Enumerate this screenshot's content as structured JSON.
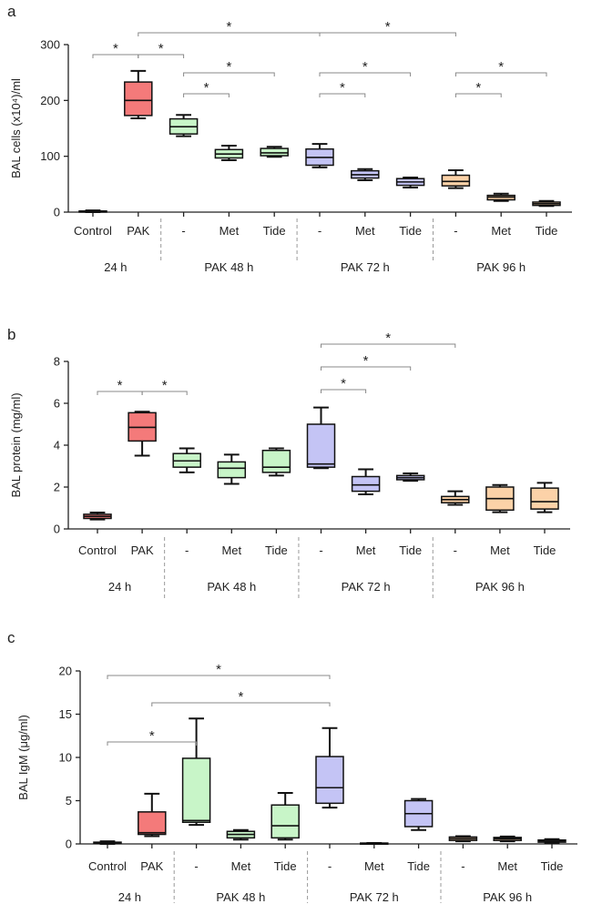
{
  "colors": {
    "control": "#7f7f7f",
    "pak24": "#f47a7a",
    "pak48": "#c8f5c8",
    "pak72": "#c4c4f5",
    "pak96": "#fcd2a8"
  },
  "chart_data": [
    {
      "panel": "a",
      "type": "box",
      "ylabel": "BAL cells (x10⁴)/ml",
      "ylim": [
        0,
        300
      ],
      "yticks": [
        0,
        100,
        200,
        300
      ],
      "categories": [
        "Control",
        "PAK",
        "-",
        "Met",
        "Tide",
        "-",
        "Met",
        "Tide",
        "-",
        "Met",
        "Tide"
      ],
      "groups": [
        {
          "label": "24 h",
          "from": 0,
          "to": 1
        },
        {
          "label": "PAK 48 h",
          "from": 2,
          "to": 4
        },
        {
          "label": "PAK 72 h",
          "from": 5,
          "to": 7
        },
        {
          "label": "PAK 96 h",
          "from": 8,
          "to": 10
        }
      ],
      "series": [
        {
          "name": "Control",
          "color": "control",
          "min": 0,
          "q1": 0,
          "median": 1,
          "q3": 2,
          "max": 3
        },
        {
          "name": "PAK",
          "color": "pak24",
          "min": 168,
          "q1": 173,
          "median": 200,
          "q3": 233,
          "max": 253
        },
        {
          "name": "PAK 48 h -",
          "color": "pak48",
          "min": 136,
          "q1": 140,
          "median": 153,
          "q3": 167,
          "max": 174
        },
        {
          "name": "PAK 48 h Met",
          "color": "pak48",
          "min": 93,
          "q1": 97,
          "median": 104,
          "q3": 112,
          "max": 119
        },
        {
          "name": "PAK 48 h Tide",
          "color": "pak48",
          "min": 99,
          "q1": 101,
          "median": 106,
          "q3": 114,
          "max": 117
        },
        {
          "name": "PAK 72 h -",
          "color": "pak72",
          "min": 80,
          "q1": 84,
          "median": 98,
          "q3": 113,
          "max": 122
        },
        {
          "name": "PAK 72 h Met",
          "color": "pak72",
          "min": 57,
          "q1": 61,
          "median": 67,
          "q3": 74,
          "max": 77
        },
        {
          "name": "PAK 72 h Tide",
          "color": "pak72",
          "min": 44,
          "q1": 48,
          "median": 54,
          "q3": 60,
          "max": 62
        },
        {
          "name": "PAK 96 h -",
          "color": "pak96",
          "min": 43,
          "q1": 47,
          "median": 55,
          "q3": 66,
          "max": 75
        },
        {
          "name": "PAK 96 h Met",
          "color": "pak96",
          "min": 20,
          "q1": 22,
          "median": 27,
          "q3": 30,
          "max": 33
        },
        {
          "name": "PAK 96 h Tide",
          "color": "pak96",
          "min": 11,
          "q1": 12,
          "median": 15,
          "q3": 18,
          "max": 20
        }
      ],
      "comparisons": [
        {
          "from": 0,
          "to": 1,
          "tier": 0,
          "label": "*"
        },
        {
          "from": 1,
          "to": 2,
          "tier": 0,
          "label": "*"
        },
        {
          "from": 1,
          "to": 5,
          "tier": 1,
          "label": "*"
        },
        {
          "from": 5,
          "to": 8,
          "tier": 1,
          "label": "*"
        },
        {
          "from": 2,
          "to": 4,
          "tier": 2,
          "label": "*"
        },
        {
          "from": 5,
          "to": 7,
          "tier": 2,
          "label": "*"
        },
        {
          "from": 8,
          "to": 10,
          "tier": 2,
          "label": "*"
        },
        {
          "from": 2,
          "to": 3,
          "tier": 3,
          "label": "*"
        },
        {
          "from": 5,
          "to": 6,
          "tier": 3,
          "label": "*"
        },
        {
          "from": 8,
          "to": 9,
          "tier": 3,
          "label": "*"
        }
      ]
    },
    {
      "panel": "b",
      "type": "box",
      "ylabel": "BAL protein (mg/ml)",
      "ylim": [
        0,
        8
      ],
      "yticks": [
        0,
        2,
        4,
        6,
        8
      ],
      "categories": [
        "Control",
        "PAK",
        "-",
        "Met",
        "Tide",
        "-",
        "Met",
        "Tide",
        "-",
        "Met",
        "Tide"
      ],
      "groups": [
        {
          "label": "24 h",
          "from": 0,
          "to": 1
        },
        {
          "label": "PAK 48 h",
          "from": 2,
          "to": 4
        },
        {
          "label": "PAK 72 h",
          "from": 5,
          "to": 7
        },
        {
          "label": "PAK 96 h",
          "from": 8,
          "to": 10
        }
      ],
      "series": [
        {
          "name": "Control",
          "color": "pak24",
          "min": 0.45,
          "q1": 0.5,
          "median": 0.6,
          "q3": 0.7,
          "max": 0.78
        },
        {
          "name": "PAK",
          "color": "pak24",
          "min": 3.5,
          "q1": 4.2,
          "median": 4.85,
          "q3": 5.55,
          "max": 5.6
        },
        {
          "name": "PAK 48 h -",
          "color": "pak48",
          "min": 2.7,
          "q1": 2.95,
          "median": 3.25,
          "q3": 3.6,
          "max": 3.85
        },
        {
          "name": "PAK 48 h Met",
          "color": "pak48",
          "min": 2.15,
          "q1": 2.45,
          "median": 2.9,
          "q3": 3.2,
          "max": 3.55
        },
        {
          "name": "PAK 48 h Tide",
          "color": "pak48",
          "min": 2.55,
          "q1": 2.7,
          "median": 2.95,
          "q3": 3.75,
          "max": 3.85
        },
        {
          "name": "PAK 72 h -",
          "color": "pak72",
          "min": 2.9,
          "q1": 2.95,
          "median": 3.1,
          "q3": 5.0,
          "max": 5.8
        },
        {
          "name": "PAK 72 h Met",
          "color": "pak72",
          "min": 1.65,
          "q1": 1.8,
          "median": 2.1,
          "q3": 2.5,
          "max": 2.85
        },
        {
          "name": "PAK 72 h Tide",
          "color": "pak72",
          "min": 2.3,
          "q1": 2.35,
          "median": 2.45,
          "q3": 2.55,
          "max": 2.65
        },
        {
          "name": "PAK 96 h -",
          "color": "pak96",
          "min": 1.15,
          "q1": 1.25,
          "median": 1.4,
          "q3": 1.55,
          "max": 1.8
        },
        {
          "name": "PAK 96 h Met",
          "color": "pak96",
          "min": 0.8,
          "q1": 0.9,
          "median": 1.45,
          "q3": 2.0,
          "max": 2.1
        },
        {
          "name": "PAK 96 h Tide",
          "color": "pak96",
          "min": 0.8,
          "q1": 0.95,
          "median": 1.3,
          "q3": 1.95,
          "max": 2.2
        }
      ],
      "comparisons": [
        {
          "from": 0,
          "to": 1,
          "tier": 0,
          "label": "*"
        },
        {
          "from": 1,
          "to": 2,
          "tier": 0,
          "label": "*"
        },
        {
          "from": 5,
          "to": 8,
          "tier": 1,
          "label": "*"
        },
        {
          "from": 5,
          "to": 7,
          "tier": 2,
          "label": "*"
        },
        {
          "from": 5,
          "to": 6,
          "tier": 3,
          "label": "*"
        }
      ]
    },
    {
      "panel": "c",
      "type": "box",
      "ylabel": "BAL IgM (μg/ml)",
      "ylim": [
        0,
        20
      ],
      "yticks": [
        0,
        5,
        10,
        15,
        20
      ],
      "categories": [
        "Control",
        "PAK",
        "-",
        "Met",
        "Tide",
        "-",
        "Met",
        "Tide",
        "-",
        "Met",
        "Tide"
      ],
      "groups": [
        {
          "label": "24 h",
          "from": 0,
          "to": 1
        },
        {
          "label": "PAK 48 h",
          "from": 2,
          "to": 4
        },
        {
          "label": "PAK 72 h",
          "from": 5,
          "to": 7
        },
        {
          "label": "PAK 96 h",
          "from": 8,
          "to": 10
        }
      ],
      "series": [
        {
          "name": "Control",
          "color": "pak24",
          "min": 0,
          "q1": 0.05,
          "median": 0.1,
          "q3": 0.2,
          "max": 0.3
        },
        {
          "name": "PAK",
          "color": "pak24",
          "min": 0.9,
          "q1": 1.1,
          "median": 1.3,
          "q3": 3.7,
          "max": 5.8
        },
        {
          "name": "PAK 48 h -",
          "color": "pak48",
          "min": 2.2,
          "q1": 2.5,
          "median": 2.7,
          "q3": 9.9,
          "max": 14.5
        },
        {
          "name": "PAK 48 h Met",
          "color": "pak48",
          "min": 0.5,
          "q1": 0.7,
          "median": 1.1,
          "q3": 1.45,
          "max": 1.6
        },
        {
          "name": "PAK 48 h Tide",
          "color": "pak48",
          "min": 0.5,
          "q1": 0.7,
          "median": 2.1,
          "q3": 4.5,
          "max": 5.9
        },
        {
          "name": "PAK 72 h -",
          "color": "pak72",
          "min": 4.2,
          "q1": 4.7,
          "median": 6.5,
          "q3": 10.1,
          "max": 13.4
        },
        {
          "name": "PAK 72 h Met",
          "color": "pak72",
          "min": 0,
          "q1": 0,
          "median": 0.05,
          "q3": 0.1,
          "max": 0.1
        },
        {
          "name": "PAK 72 h Tide",
          "color": "pak72",
          "min": 1.6,
          "q1": 2.0,
          "median": 3.5,
          "q3": 5.0,
          "max": 5.2
        },
        {
          "name": "PAK 96 h -",
          "color": "pak96",
          "min": 0.3,
          "q1": 0.4,
          "median": 0.6,
          "q3": 0.8,
          "max": 0.9
        },
        {
          "name": "PAK 96 h Met",
          "color": "pak96",
          "min": 0.3,
          "q1": 0.4,
          "median": 0.6,
          "q3": 0.75,
          "max": 0.85
        },
        {
          "name": "PAK 96 h Tide",
          "color": "pak96",
          "min": 0.1,
          "q1": 0.2,
          "median": 0.35,
          "q3": 0.45,
          "max": 0.55
        }
      ],
      "comparisons": [
        {
          "from": 0,
          "to": 5,
          "tier": 0,
          "label": "*"
        },
        {
          "from": 1,
          "to": 5,
          "tier": 1,
          "label": "*"
        },
        {
          "from": 0,
          "to": 2,
          "tier": 2,
          "label": "*"
        }
      ]
    }
  ]
}
